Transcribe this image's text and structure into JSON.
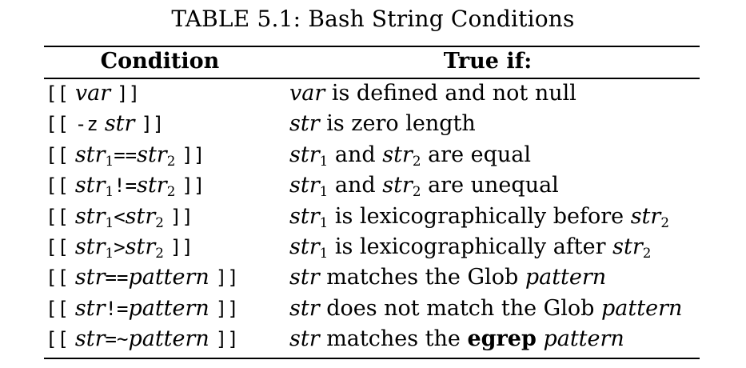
{
  "caption": "TABLE 5.1: Bash String Conditions",
  "header": {
    "condition": "Condition",
    "true_if": "True if:"
  },
  "rows": [
    {
      "condition": [
        {
          "t": "[[",
          "s": "tt"
        },
        {
          "t": " ",
          "s": "sp"
        },
        {
          "t": "var",
          "s": "it"
        },
        {
          "t": " ",
          "s": "sp"
        },
        {
          "t": "]]",
          "s": "tt"
        }
      ],
      "description": [
        {
          "t": "var",
          "s": "it"
        },
        {
          "t": " is defined and not null",
          "s": ""
        }
      ]
    },
    {
      "condition": [
        {
          "t": "[[",
          "s": "tt"
        },
        {
          "t": " ",
          "s": "sp"
        },
        {
          "t": "-z",
          "s": "tt"
        },
        {
          "t": " ",
          "s": "sp"
        },
        {
          "t": "str",
          "s": "it"
        },
        {
          "t": " ",
          "s": "sp"
        },
        {
          "t": "]]",
          "s": "tt"
        }
      ],
      "description": [
        {
          "t": "str",
          "s": "it"
        },
        {
          "t": " is zero length",
          "s": ""
        }
      ]
    },
    {
      "condition": [
        {
          "t": "[[",
          "s": "tt"
        },
        {
          "t": " ",
          "s": "sp"
        },
        {
          "t": "str",
          "s": "it"
        },
        {
          "t": "1",
          "s": "sub"
        },
        {
          "t": "==",
          "s": "tt"
        },
        {
          "t": "str",
          "s": "it"
        },
        {
          "t": "2",
          "s": "sub"
        },
        {
          "t": " ",
          "s": "sp"
        },
        {
          "t": "]]",
          "s": "tt"
        }
      ],
      "description": [
        {
          "t": "str",
          "s": "it"
        },
        {
          "t": "1",
          "s": "sub"
        },
        {
          "t": " and ",
          "s": ""
        },
        {
          "t": "str",
          "s": "it"
        },
        {
          "t": "2",
          "s": "sub"
        },
        {
          "t": " are equal",
          "s": ""
        }
      ]
    },
    {
      "condition": [
        {
          "t": "[[",
          "s": "tt"
        },
        {
          "t": " ",
          "s": "sp"
        },
        {
          "t": "str",
          "s": "it"
        },
        {
          "t": "1",
          "s": "sub"
        },
        {
          "t": "!=",
          "s": "tt"
        },
        {
          "t": "str",
          "s": "it"
        },
        {
          "t": "2",
          "s": "sub"
        },
        {
          "t": " ",
          "s": "sp"
        },
        {
          "t": "]]",
          "s": "tt"
        }
      ],
      "description": [
        {
          "t": "str",
          "s": "it"
        },
        {
          "t": "1",
          "s": "sub"
        },
        {
          "t": " and ",
          "s": ""
        },
        {
          "t": "str",
          "s": "it"
        },
        {
          "t": "2",
          "s": "sub"
        },
        {
          "t": " are unequal",
          "s": ""
        }
      ]
    },
    {
      "condition": [
        {
          "t": "[[",
          "s": "tt"
        },
        {
          "t": " ",
          "s": "sp"
        },
        {
          "t": "str",
          "s": "it"
        },
        {
          "t": "1",
          "s": "sub"
        },
        {
          "t": "<",
          "s": "tt"
        },
        {
          "t": "str",
          "s": "it"
        },
        {
          "t": "2",
          "s": "sub"
        },
        {
          "t": " ",
          "s": "sp"
        },
        {
          "t": "]]",
          "s": "tt"
        }
      ],
      "description": [
        {
          "t": "str",
          "s": "it"
        },
        {
          "t": "1",
          "s": "sub"
        },
        {
          "t": " is lexicographically before ",
          "s": ""
        },
        {
          "t": "str",
          "s": "it"
        },
        {
          "t": "2",
          "s": "sub"
        }
      ]
    },
    {
      "condition": [
        {
          "t": "[[",
          "s": "tt"
        },
        {
          "t": " ",
          "s": "sp"
        },
        {
          "t": "str",
          "s": "it"
        },
        {
          "t": "1",
          "s": "sub"
        },
        {
          "t": ">",
          "s": "tt"
        },
        {
          "t": "str",
          "s": "it"
        },
        {
          "t": "2",
          "s": "sub"
        },
        {
          "t": " ",
          "s": "sp"
        },
        {
          "t": "]]",
          "s": "tt"
        }
      ],
      "description": [
        {
          "t": "str",
          "s": "it"
        },
        {
          "t": "1",
          "s": "sub"
        },
        {
          "t": " is lexicographically after ",
          "s": ""
        },
        {
          "t": "str",
          "s": "it"
        },
        {
          "t": "2",
          "s": "sub"
        }
      ]
    },
    {
      "condition": [
        {
          "t": "[[",
          "s": "tt"
        },
        {
          "t": " ",
          "s": "sp"
        },
        {
          "t": "str",
          "s": "it"
        },
        {
          "t": "==",
          "s": "tt"
        },
        {
          "t": "pattern",
          "s": "it"
        },
        {
          "t": " ",
          "s": "sp"
        },
        {
          "t": "]]",
          "s": "tt"
        }
      ],
      "description": [
        {
          "t": "str",
          "s": "it"
        },
        {
          "t": " matches the Glob ",
          "s": ""
        },
        {
          "t": "pattern",
          "s": "it"
        }
      ]
    },
    {
      "condition": [
        {
          "t": "[[",
          "s": "tt"
        },
        {
          "t": " ",
          "s": "sp"
        },
        {
          "t": "str",
          "s": "it"
        },
        {
          "t": "!=",
          "s": "tt"
        },
        {
          "t": "pattern",
          "s": "it"
        },
        {
          "t": " ",
          "s": "sp"
        },
        {
          "t": "]]",
          "s": "tt"
        }
      ],
      "description": [
        {
          "t": "str",
          "s": "it"
        },
        {
          "t": " does not match the Glob ",
          "s": ""
        },
        {
          "t": "pattern",
          "s": "it"
        }
      ]
    },
    {
      "condition": [
        {
          "t": "[[",
          "s": "tt"
        },
        {
          "t": " ",
          "s": "sp"
        },
        {
          "t": "str",
          "s": "it"
        },
        {
          "t": "=~",
          "s": "tt"
        },
        {
          "t": "pattern",
          "s": "it"
        },
        {
          "t": " ",
          "s": "sp"
        },
        {
          "t": "]]",
          "s": "tt"
        }
      ],
      "description": [
        {
          "t": "str",
          "s": "it"
        },
        {
          "t": " matches the ",
          "s": ""
        },
        {
          "t": "egrep",
          "s": "bf"
        },
        {
          "t": " ",
          "s": ""
        },
        {
          "t": "pattern",
          "s": "it"
        }
      ]
    }
  ]
}
